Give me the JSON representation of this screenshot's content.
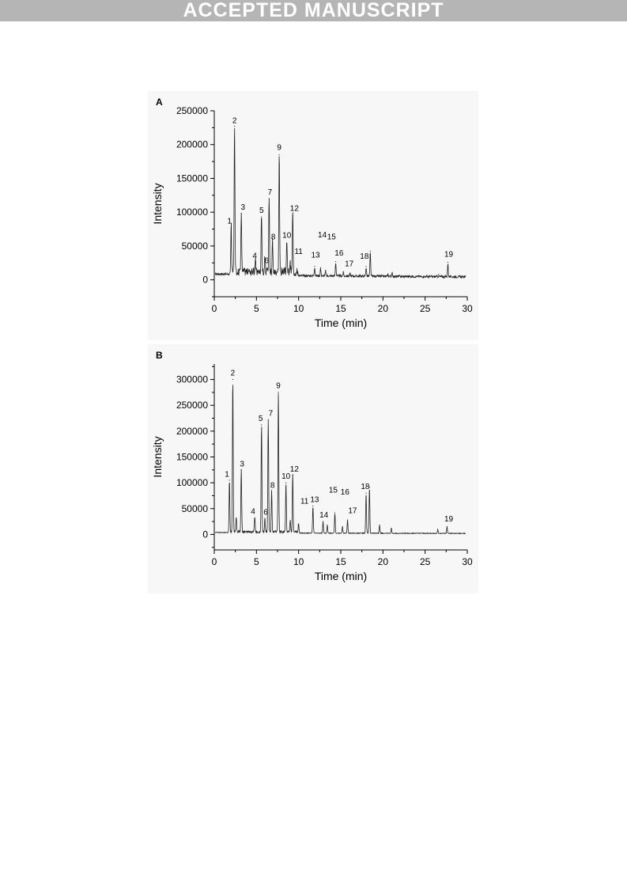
{
  "header": {
    "banner": "ACCEPTED MANUSCRIPT"
  },
  "chart_data": [
    {
      "type": "line",
      "panel_label": "A",
      "xlabel": "Time (min)",
      "ylabel": "Intensity",
      "xlim": [
        0,
        30
      ],
      "ylim": [
        -25000,
        250000
      ],
      "xticks": [
        "0",
        "5",
        "10",
        "15",
        "20",
        "25",
        "30"
      ],
      "yticks": [
        "0",
        "50000",
        "100000",
        "150000",
        "200000",
        "250000"
      ],
      "baseline": 7000,
      "peaks": [
        {
          "x": 2.0,
          "y": 77000
        },
        {
          "x": 2.4,
          "y": 227000
        },
        {
          "x": 3.2,
          "y": 98000
        },
        {
          "x": 4.9,
          "y": 24000
        },
        {
          "x": 5.6,
          "y": 93000
        },
        {
          "x": 6.0,
          "y": 32000
        },
        {
          "x": 6.5,
          "y": 120000
        },
        {
          "x": 6.9,
          "y": 55000
        },
        {
          "x": 7.7,
          "y": 185000
        },
        {
          "x": 8.6,
          "y": 52000
        },
        {
          "x": 9.0,
          "y": 18000
        },
        {
          "x": 9.3,
          "y": 95000
        },
        {
          "x": 11.9,
          "y": 20000
        },
        {
          "x": 12.6,
          "y": 18000
        },
        {
          "x": 13.2,
          "y": 14000
        },
        {
          "x": 14.4,
          "y": 27000
        },
        {
          "x": 15.3,
          "y": 12000
        },
        {
          "x": 16.1,
          "y": 10000
        },
        {
          "x": 18.0,
          "y": 20000
        },
        {
          "x": 18.5,
          "y": 42000
        },
        {
          "x": 20.6,
          "y": 9000
        },
        {
          "x": 21.1,
          "y": 11000
        },
        {
          "x": 26.6,
          "y": 8000
        },
        {
          "x": 27.7,
          "y": 26000
        }
      ],
      "peak_labels": [
        {
          "label": "1",
          "x": 1.8,
          "y": 83000
        },
        {
          "label": "2",
          "x": 2.4,
          "y": 232000
        },
        {
          "label": "3",
          "x": 3.4,
          "y": 104000
        },
        {
          "label": "4",
          "x": 4.8,
          "y": 32000
        },
        {
          "label": "5",
          "x": 5.6,
          "y": 99000
        },
        {
          "label": "6",
          "x": 6.2,
          "y": 25000
        },
        {
          "label": "7",
          "x": 6.6,
          "y": 126000
        },
        {
          "label": "8",
          "x": 7.0,
          "y": 60000
        },
        {
          "label": "9",
          "x": 7.7,
          "y": 192000
        },
        {
          "label": "10",
          "x": 8.6,
          "y": 62000
        },
        {
          "label": "11",
          "x": 10.0,
          "y": 38000
        },
        {
          "label": "12",
          "x": 9.5,
          "y": 102000
        },
        {
          "label": "13",
          "x": 12.0,
          "y": 33000
        },
        {
          "label": "14",
          "x": 12.8,
          "y": 63000
        },
        {
          "label": "15",
          "x": 13.9,
          "y": 60000
        },
        {
          "label": "16",
          "x": 14.8,
          "y": 36000
        },
        {
          "label": "17",
          "x": 16.0,
          "y": 20000
        },
        {
          "label": "18",
          "x": 17.8,
          "y": 31000
        },
        {
          "label": "19",
          "x": 27.8,
          "y": 34000
        }
      ]
    },
    {
      "type": "line",
      "panel_label": "B",
      "xlabel": "Time (min)",
      "ylabel": "Intensity",
      "xlim": [
        0,
        30
      ],
      "ylim": [
        -30000,
        330000
      ],
      "xticks": [
        "0",
        "5",
        "10",
        "15",
        "20",
        "25",
        "30"
      ],
      "yticks": [
        "0",
        "50000",
        "100000",
        "150000",
        "200000",
        "250000",
        "300000"
      ],
      "baseline": 3000,
      "peaks": [
        {
          "x": 1.8,
          "y": 105000
        },
        {
          "x": 2.2,
          "y": 300000
        },
        {
          "x": 2.6,
          "y": 30000
        },
        {
          "x": 3.2,
          "y": 125000
        },
        {
          "x": 4.8,
          "y": 30000
        },
        {
          "x": 5.6,
          "y": 212000
        },
        {
          "x": 6.0,
          "y": 30000
        },
        {
          "x": 6.4,
          "y": 222000
        },
        {
          "x": 6.8,
          "y": 82000
        },
        {
          "x": 7.6,
          "y": 275000
        },
        {
          "x": 8.5,
          "y": 100000
        },
        {
          "x": 9.0,
          "y": 25000
        },
        {
          "x": 9.3,
          "y": 115000
        },
        {
          "x": 10.0,
          "y": 20000
        },
        {
          "x": 11.7,
          "y": 55000
        },
        {
          "x": 12.9,
          "y": 25000
        },
        {
          "x": 13.4,
          "y": 18000
        },
        {
          "x": 14.3,
          "y": 42000
        },
        {
          "x": 15.2,
          "y": 15000
        },
        {
          "x": 15.8,
          "y": 28000
        },
        {
          "x": 18.0,
          "y": 80000
        },
        {
          "x": 18.4,
          "y": 92000
        },
        {
          "x": 19.6,
          "y": 18000
        },
        {
          "x": 21.0,
          "y": 12000
        },
        {
          "x": 26.5,
          "y": 10000
        },
        {
          "x": 27.6,
          "y": 15000
        }
      ],
      "peak_labels": [
        {
          "label": "1",
          "x": 1.5,
          "y": 112000
        },
        {
          "label": "2",
          "x": 2.2,
          "y": 308000
        },
        {
          "label": "3",
          "x": 3.3,
          "y": 132000
        },
        {
          "label": "4",
          "x": 4.6,
          "y": 40000
        },
        {
          "label": "5",
          "x": 5.5,
          "y": 220000
        },
        {
          "label": "6",
          "x": 6.1,
          "y": 38000
        },
        {
          "label": "7",
          "x": 6.7,
          "y": 230000
        },
        {
          "label": "8",
          "x": 6.9,
          "y": 90000
        },
        {
          "label": "9",
          "x": 7.6,
          "y": 283000
        },
        {
          "label": "10",
          "x": 8.5,
          "y": 108000
        },
        {
          "label": "11",
          "x": 10.7,
          "y": 60000
        },
        {
          "label": "12",
          "x": 9.5,
          "y": 122000
        },
        {
          "label": "13",
          "x": 11.9,
          "y": 63000
        },
        {
          "label": "14",
          "x": 13.0,
          "y": 33000
        },
        {
          "label": "15",
          "x": 14.1,
          "y": 81000
        },
        {
          "label": "16",
          "x": 15.5,
          "y": 77000
        },
        {
          "label": "17",
          "x": 16.4,
          "y": 41000
        },
        {
          "label": "18",
          "x": 17.9,
          "y": 88000
        },
        {
          "label": "19",
          "x": 27.8,
          "y": 25000
        }
      ]
    }
  ]
}
